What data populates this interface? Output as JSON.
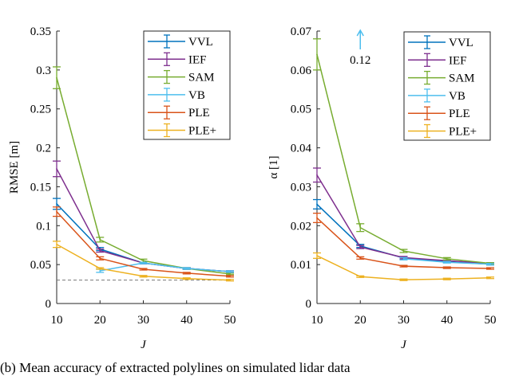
{
  "caption": "(b) Mean accuracy of extracted polylines on simulated lidar data",
  "colors": {
    "VVL": "#0072BD",
    "IEF": "#7E2F8E",
    "SAM": "#77AC30",
    "VB": "#4DBEEE",
    "PLE": "#D95319",
    "PLE+": "#EDB120"
  },
  "chart_data": [
    {
      "type": "line",
      "xlabel": "J",
      "ylabel": "RMSE [m]",
      "x": [
        10,
        20,
        30,
        40,
        50
      ],
      "xlim": [
        10,
        50
      ],
      "ylim": [
        0,
        0.35
      ],
      "xticks": [
        "10",
        "20",
        "30",
        "40",
        "50"
      ],
      "yticks": [
        "0",
        "0.05",
        "0.1",
        "0.15",
        "0.2",
        "0.25",
        "0.3",
        "0.35"
      ],
      "legend_position": "top-right",
      "grid": false,
      "reference_line": {
        "y": 0.03,
        "style": "dashed"
      },
      "series": [
        {
          "name": "VVL",
          "values": [
            0.128,
            0.07,
            0.052,
            0.045,
            0.041
          ],
          "errors": [
            0.007,
            0.002,
            0.001,
            0.001,
            0.001
          ]
        },
        {
          "name": "IEF",
          "values": [
            0.173,
            0.068,
            0.052,
            0.045,
            0.041
          ],
          "errors": [
            0.01,
            0.002,
            0.001,
            0.001,
            0.001
          ]
        },
        {
          "name": "SAM",
          "values": [
            0.29,
            0.082,
            0.055,
            0.045,
            0.038
          ],
          "errors": [
            0.014,
            0.003,
            0.002,
            0.001,
            0.001
          ]
        },
        {
          "name": "VB",
          "values": [
            null,
            0.042,
            0.052,
            0.045,
            0.041
          ],
          "errors": [
            null,
            0.002,
            0.001,
            0.001,
            0.001
          ]
        },
        {
          "name": "PLE",
          "values": [
            0.118,
            0.058,
            0.044,
            0.039,
            0.035
          ],
          "errors": [
            0.006,
            0.002,
            0.001,
            0.001,
            0.001
          ]
        },
        {
          "name": "PLE+",
          "values": [
            0.076,
            0.045,
            0.035,
            0.032,
            0.03
          ],
          "errors": [
            0.004,
            0.001,
            0.001,
            0.001,
            0.001
          ]
        }
      ]
    },
    {
      "type": "line",
      "xlabel": "J",
      "ylabel": "α [1]",
      "x": [
        10,
        20,
        30,
        40,
        50
      ],
      "xlim": [
        10,
        50
      ],
      "ylim": [
        0,
        0.07
      ],
      "xticks": [
        "10",
        "20",
        "30",
        "40",
        "50"
      ],
      "yticks": [
        "0",
        "0.01",
        "0.02",
        "0.03",
        "0.04",
        "0.05",
        "0.06",
        "0.07"
      ],
      "legend_position": "top-right",
      "grid": false,
      "annotation": {
        "text": "0.12",
        "series": "VB",
        "x": 20,
        "arrow": "up"
      },
      "series": [
        {
          "name": "VVL",
          "values": [
            0.0255,
            0.0148,
            0.0117,
            0.0107,
            0.0101
          ],
          "errors": [
            0.0012,
            0.0004,
            0.0003,
            0.0002,
            0.0002
          ]
        },
        {
          "name": "IEF",
          "values": [
            0.033,
            0.0145,
            0.0118,
            0.011,
            0.0103
          ],
          "errors": [
            0.0018,
            0.0004,
            0.0003,
            0.0002,
            0.0002
          ]
        },
        {
          "name": "SAM",
          "values": [
            0.064,
            0.0195,
            0.0135,
            0.0115,
            0.0103
          ],
          "errors": [
            0.004,
            0.001,
            0.0004,
            0.0003,
            0.0002
          ]
        },
        {
          "name": "VB",
          "values": [
            null,
            0.12,
            0.0115,
            0.0106,
            0.0101
          ],
          "errors": [
            null,
            null,
            0.0003,
            0.0002,
            0.0002
          ]
        },
        {
          "name": "PLE",
          "values": [
            0.022,
            0.0117,
            0.0096,
            0.0092,
            0.009
          ],
          "errors": [
            0.0012,
            0.0003,
            0.0002,
            0.0002,
            0.0002
          ]
        },
        {
          "name": "PLE+",
          "values": [
            0.0123,
            0.0069,
            0.0061,
            0.0063,
            0.0066
          ],
          "errors": [
            0.0007,
            0.0002,
            0.0002,
            0.0002,
            0.0002
          ]
        }
      ]
    }
  ]
}
